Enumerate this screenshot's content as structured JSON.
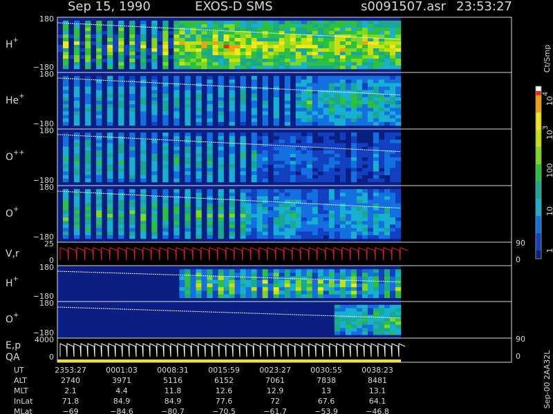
{
  "header": {
    "date": "Sep 15, 1990",
    "instrument": "EXOS-D SMS",
    "file": "s0091507.asr",
    "time": "23:53:27"
  },
  "panels": [
    {
      "label": "H",
      "charge": "+",
      "ticks": [
        180,
        -180
      ]
    },
    {
      "label": "He",
      "charge": "+",
      "ticks": [
        180,
        -180
      ]
    },
    {
      "label": "O",
      "charge": "++",
      "ticks": [
        180,
        -180
      ]
    },
    {
      "label": "O",
      "charge": "+",
      "ticks": [
        180,
        -180
      ]
    },
    {
      "label": "V,r",
      "ticks": [
        25,
        0
      ],
      "right_ticks": [
        90,
        0
      ]
    },
    {
      "label": "H",
      "charge": "+",
      "ticks": [
        180,
        -180
      ]
    },
    {
      "label": "O",
      "charge": "+",
      "ticks": [
        180,
        -180
      ]
    },
    {
      "label": "E,p",
      "label2": "QA",
      "ticks": [
        4000,
        0
      ],
      "right_ticks": [
        90,
        0
      ]
    }
  ],
  "colorbar": {
    "unit": "Ct/Smp",
    "labels": [
      {
        "base": "10",
        "exp": "4"
      },
      {
        "base": "10",
        "exp": "3"
      },
      {
        "base": "100"
      },
      {
        "base": "10"
      },
      {
        "base": "1"
      }
    ]
  },
  "footer": {
    "rows": [
      {
        "name": "UT",
        "values": [
          "2353:27",
          "0001:03",
          "0008:31",
          "0015:59",
          "0023:27",
          "0030:55",
          "0038:23"
        ]
      },
      {
        "name": "ALT",
        "values": [
          2740,
          3971,
          5116,
          6152,
          7061,
          7838,
          8481
        ]
      },
      {
        "name": "MLT",
        "values": [
          2.1,
          4.4,
          11.8,
          12.6,
          12.9,
          13.0,
          13.1
        ]
      },
      {
        "name": "InLat",
        "values": [
          71.8,
          84.9,
          84.9,
          77.6,
          72.0,
          67.6,
          64.1
        ]
      },
      {
        "name": "MLat",
        "values": [
          -69.0,
          -84.6,
          -80.7,
          -70.5,
          -61.7,
          -53.9,
          -46.8
        ]
      }
    ],
    "code": "Sep-00 2AA32L"
  }
}
